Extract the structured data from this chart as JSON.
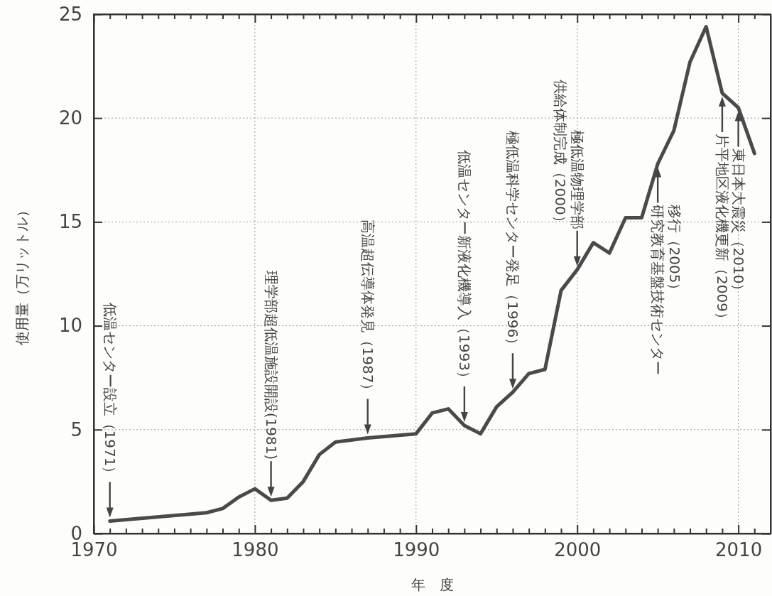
{
  "chart_data": {
    "type": "line",
    "xlabel": "年　度",
    "ylabel": "使用量（万リットル）",
    "x": [
      1971,
      1977,
      1978,
      1979,
      1980,
      1981,
      1982,
      1983,
      1984,
      1985,
      1987,
      1990,
      1991,
      1992,
      1993,
      1994,
      1995,
      1996,
      1997,
      1998,
      1999,
      2000,
      2001,
      2002,
      2003,
      2004,
      2005,
      2006,
      2007,
      2008,
      2009,
      2010,
      2011
    ],
    "series": [
      {
        "color": "#4a4a4a",
        "values": [
          0.6,
          1.0,
          1.2,
          1.75,
          2.15,
          1.6,
          1.7,
          2.5,
          3.8,
          4.4,
          4.6,
          4.8,
          5.8,
          6.0,
          5.2,
          4.8,
          6.1,
          6.8,
          7.7,
          7.9,
          11.7,
          12.7,
          14.0,
          13.5,
          15.2,
          15.2,
          17.8,
          19.4,
          22.7,
          24.4,
          21.2,
          20.5,
          18.3
        ]
      }
    ],
    "xlim": [
      1970,
      2012
    ],
    "ylim": [
      0,
      25
    ],
    "xticks": [
      1970,
      {
        "value": 1971,
        "label": null
      },
      {
        "value": 1972,
        "label": null
      },
      {
        "value": 1973,
        "label": null
      },
      {
        "value": 1974,
        "label": null
      },
      {
        "value": 1975,
        "label": null
      },
      {
        "value": 1976,
        "label": null
      },
      {
        "value": 1977,
        "label": null
      },
      {
        "value": 1978,
        "label": null
      },
      {
        "value": 1979,
        "label": null
      },
      1980,
      {
        "value": 1981,
        "label": null
      },
      {
        "value": 1982,
        "label": null
      },
      {
        "value": 1983,
        "label": null
      },
      {
        "value": 1984,
        "label": null
      },
      {
        "value": 1985,
        "label": null
      },
      {
        "value": 1986,
        "label": null
      },
      {
        "value": 1987,
        "label": null
      },
      {
        "value": 1988,
        "label": null
      },
      {
        "value": 1989,
        "label": null
      },
      1990,
      {
        "value": 1991,
        "label": null
      },
      {
        "value": 1992,
        "label": null
      },
      {
        "value": 1993,
        "label": null
      },
      {
        "value": 1994,
        "label": null
      },
      {
        "value": 1995,
        "label": null
      },
      {
        "value": 1996,
        "label": null
      },
      {
        "value": 1997,
        "label": null
      },
      {
        "value": 1998,
        "label": null
      },
      {
        "value": 1999,
        "label": null
      },
      2000,
      {
        "value": 2001,
        "label": null
      },
      {
        "value": 2002,
        "label": null
      },
      {
        "value": 2003,
        "label": null
      },
      {
        "value": 2004,
        "label": null
      },
      {
        "value": 2005,
        "label": null
      },
      {
        "value": 2006,
        "label": null
      },
      {
        "value": 2007,
        "label": null
      },
      {
        "value": 2008,
        "label": null
      },
      {
        "value": 2009,
        "label": null
      },
      2010,
      {
        "value": 2011,
        "label": null
      }
    ],
    "yticks": [
      0,
      5,
      10,
      15,
      20,
      25
    ],
    "grid": true,
    "marker": "none",
    "line_style": "solid",
    "annotations": [
      {
        "text": "低温センター設立（1971）",
        "x": 1971,
        "y": 0.6
      },
      {
        "text": "理学部超低温施設開設(1981)",
        "x": 1981,
        "y": 1.6
      },
      {
        "text": "高温超伝導体発見（1987）",
        "x": 1987,
        "y": 4.6
      },
      {
        "text": "低温センター新液化機導入（1993）",
        "x": 1993,
        "y": 5.2
      },
      {
        "text": "極低温科学センター発足（1996）",
        "x": 1996,
        "y": 6.8
      },
      {
        "text": "極低温物理学部",
        "x": 2000,
        "y": 12.7
      },
      "供給体制完成（2000）",
      {
        "text": "研究教育基盤技術センター",
        "x": 2005,
        "y": 17.8
      },
      "移行（2005）",
      {
        "text": "片平地区液化機更新（2009）",
        "x": 2009,
        "y": 21.2
      },
      {
        "text": "東日本大震災（2010）",
        "x": 2010,
        "y": 20.5
      }
    ]
  }
}
